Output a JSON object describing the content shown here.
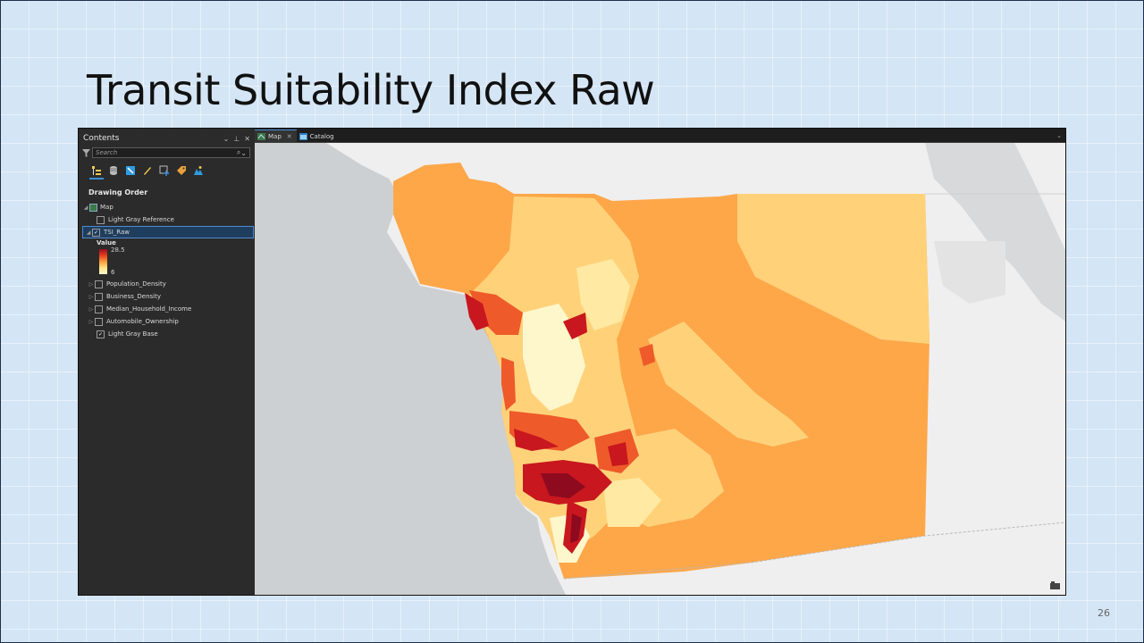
{
  "slide": {
    "title": "Transit Suitability Index Raw",
    "page_number": "26"
  },
  "contents_pane": {
    "title": "Contents",
    "controls": [
      "⌄",
      "⊥",
      "✕"
    ],
    "search_placeholder": "Search",
    "section_label": "Drawing Order",
    "map_node": "Map",
    "layers": [
      {
        "label": "Light Gray Reference",
        "checked": false,
        "expandable": false
      },
      {
        "label": "TSI_Raw",
        "checked": true,
        "expandable": true,
        "selected": true
      },
      {
        "label": "Population_Density",
        "checked": false,
        "expandable": true
      },
      {
        "label": "Business_Density",
        "checked": false,
        "expandable": true
      },
      {
        "label": "Median_Household_Income",
        "checked": false,
        "expandable": true
      },
      {
        "label": "Automobile_Ownership",
        "checked": false,
        "expandable": true
      },
      {
        "label": "Light Gray Base",
        "checked": true,
        "expandable": false
      }
    ],
    "legend": {
      "title": "Value",
      "max": "28.5",
      "min": "6"
    }
  },
  "map_view": {
    "tabs": [
      {
        "label": "Map",
        "active": true
      },
      {
        "label": "Catalog",
        "active": false
      }
    ],
    "colors": {
      "water": "#cdd0d2",
      "land": "#efefef",
      "class_1": "#fff7cc",
      "class_2": "#ffe9a3",
      "class_3": "#ffd27a",
      "class_4": "#fea749",
      "class_5": "#ef5a2a",
      "class_6": "#c8171e",
      "class_7": "#8e0a1f"
    }
  }
}
